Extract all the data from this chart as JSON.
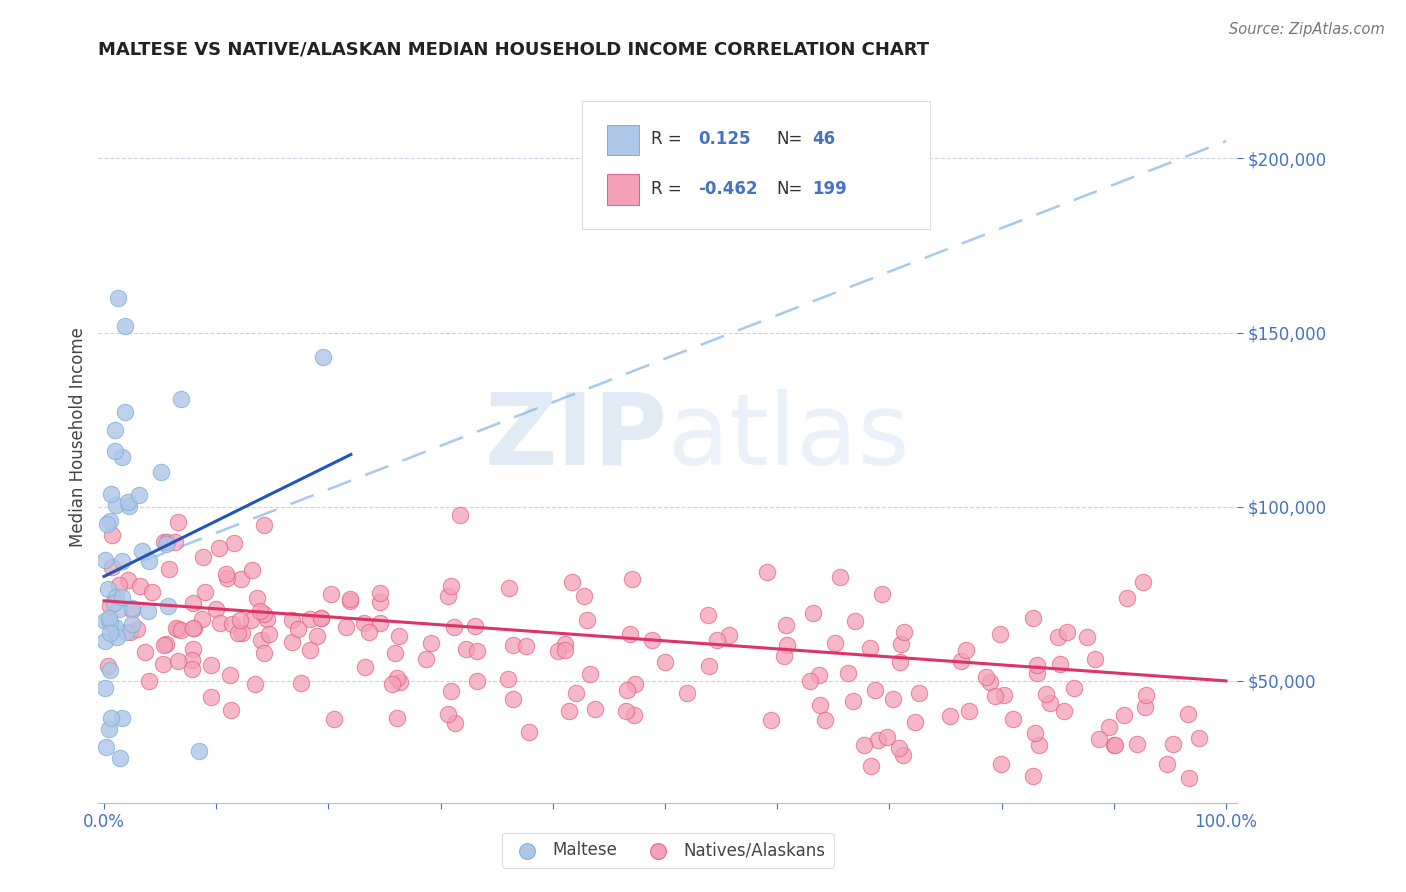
{
  "title": "MALTESE VS NATIVE/ALASKAN MEDIAN HOUSEHOLD INCOME CORRELATION CHART",
  "source": "Source: ZipAtlas.com",
  "ylabel": "Median Household Income",
  "blue_R": 0.125,
  "blue_N": 46,
  "pink_R": -0.462,
  "pink_N": 199,
  "blue_color": "#aec6e8",
  "blue_edge_color": "#7aafd4",
  "pink_color": "#f4a0b8",
  "pink_edge_color": "#e06080",
  "blue_trend_color": "#2255bb",
  "pink_trend_color": "#dd3366",
  "blue_dashed_color": "#88b8e8",
  "axis_color": "#4472c4",
  "grid_color": "#c8d0dc",
  "watermark_zip": "ZIP",
  "watermark_atlas": "atlas",
  "background_color": "#ffffff",
  "title_fontsize": 13,
  "tick_fontsize": 12
}
